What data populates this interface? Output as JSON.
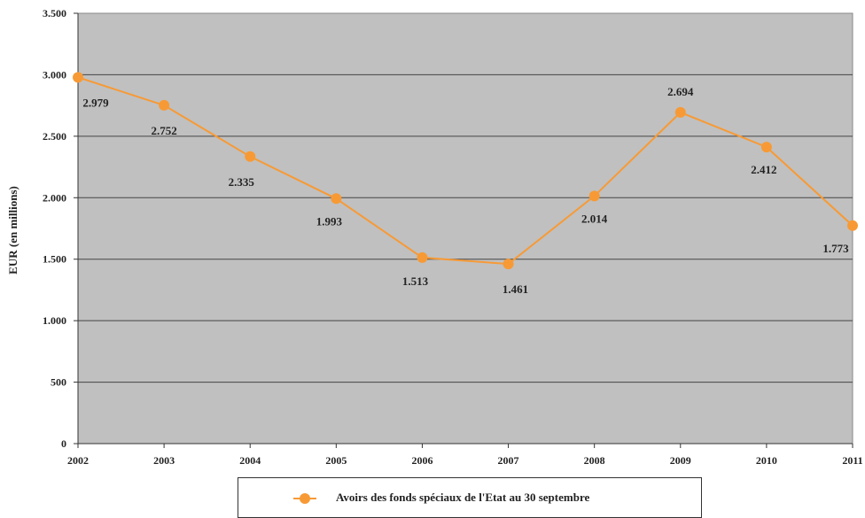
{
  "chart_data": {
    "type": "line",
    "title": "",
    "xlabel": "",
    "ylabel": "EUR (en millions)",
    "x": [
      "2002",
      "2003",
      "2004",
      "2005",
      "2006",
      "2007",
      "2008",
      "2009",
      "2010",
      "2011"
    ],
    "ylim": [
      0,
      3500
    ],
    "yticks": [
      0,
      500,
      1000,
      1500,
      2000,
      2500,
      3000,
      3500
    ],
    "ytick_labels": [
      "0",
      "500",
      "1.000",
      "1.500",
      "2.000",
      "2.500",
      "3.000",
      "3.500"
    ],
    "grid": true,
    "legend_position": "bottom",
    "series": [
      {
        "name": "Avoirs des fonds spéciaux de l'Etat au 30 septembre",
        "values": [
          2979,
          2752,
          2335,
          1993,
          1513,
          1461,
          2014,
          2694,
          2412,
          1773
        ],
        "labels": [
          "2.979",
          "2.752",
          "2.335",
          "1.993",
          "1.513",
          "1.461",
          "2.014",
          "2.694",
          "2.412",
          "1.773"
        ],
        "color": "#f79a35"
      }
    ],
    "plot_background": "#c0c0c0"
  }
}
